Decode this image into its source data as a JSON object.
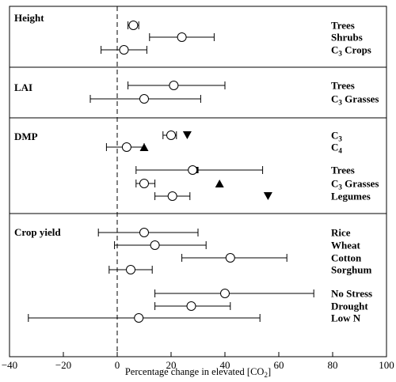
{
  "chart_data": {
    "type": "scatter",
    "xlabel": "Percentage change in elevated [CO",
    "xlabel_sub": "2",
    "xlabel_end": "]",
    "xlim": [
      -40,
      100
    ],
    "xticks": [
      -40,
      -20,
      0,
      20,
      40,
      60,
      80,
      100
    ],
    "xtick_labels": [
      "−40",
      "−20",
      "0",
      "20",
      "40",
      "60",
      "80",
      "100"
    ],
    "reference_line_x": 0,
    "panels": [
      {
        "label": "Height",
        "rows": [
          {
            "label": "Trees",
            "label_sub": "",
            "label_end": "",
            "mean": 6,
            "low": 4,
            "high": 8
          },
          {
            "label": "Shrubs",
            "label_sub": "",
            "label_end": "",
            "mean": 24,
            "low": 12,
            "high": 36
          },
          {
            "label": "C",
            "label_sub": "3",
            "label_end": " Crops",
            "mean": 2.5,
            "low": -6,
            "high": 11
          }
        ]
      },
      {
        "label": "LAI",
        "rows": [
          {
            "label": "Trees",
            "label_sub": "",
            "label_end": "",
            "mean": 21,
            "low": 4,
            "high": 40
          },
          {
            "label": "C",
            "label_sub": "3",
            "label_end": " Grasses",
            "mean": 10,
            "low": -10,
            "high": 31
          }
        ]
      },
      {
        "label": "DMP",
        "rows": [
          {
            "label": "C",
            "label_sub": "3",
            "label_end": "",
            "mean": 20,
            "low": 17,
            "high": 22,
            "extra": [
              {
                "shape": "triangle-down",
                "x": 26
              }
            ]
          },
          {
            "label": "C",
            "label_sub": "4",
            "label_end": "",
            "mean": 3.5,
            "low": -4,
            "high": 10,
            "extra": [
              {
                "shape": "triangle-up",
                "x": 10
              }
            ]
          },
          {
            "label": "Trees",
            "label_sub": "",
            "label_end": "",
            "mean": 28,
            "low": 7,
            "high": 54,
            "extra": [
              {
                "shape": "square",
                "x": 29
              }
            ]
          },
          {
            "label": "C",
            "label_sub": "3",
            "label_end": " Grasses",
            "mean": 10,
            "low": 7,
            "high": 14,
            "extra": [
              {
                "shape": "triangle-up",
                "x": 38
              }
            ]
          },
          {
            "label": "Legumes",
            "label_sub": "",
            "label_end": "",
            "mean": 20.5,
            "low": 14,
            "high": 27,
            "extra": [
              {
                "shape": "triangle-down",
                "x": 56
              }
            ]
          }
        ]
      },
      {
        "label": "Crop yield",
        "rows": [
          {
            "label": "Rice",
            "label_sub": "",
            "label_end": "",
            "mean": 10,
            "low": -7,
            "high": 30
          },
          {
            "label": "Wheat",
            "label_sub": "",
            "label_end": "",
            "mean": 14,
            "low": -1,
            "high": 33
          },
          {
            "label": "Cotton",
            "label_sub": "",
            "label_end": "",
            "mean": 42,
            "low": 24,
            "high": 63
          },
          {
            "label": "Sorghum",
            "label_sub": "",
            "label_end": "",
            "mean": 5,
            "low": -3,
            "high": 13
          },
          {
            "label": "No Stress",
            "label_sub": "",
            "label_end": "",
            "mean": 40,
            "low": 14,
            "high": 73
          },
          {
            "label": "Drought",
            "label_sub": "",
            "label_end": "",
            "mean": 27.5,
            "low": 14,
            "high": 42
          },
          {
            "label": "Low N",
            "label_sub": "",
            "label_end": "",
            "mean": 8,
            "low": -33,
            "high": 53
          }
        ]
      }
    ]
  }
}
